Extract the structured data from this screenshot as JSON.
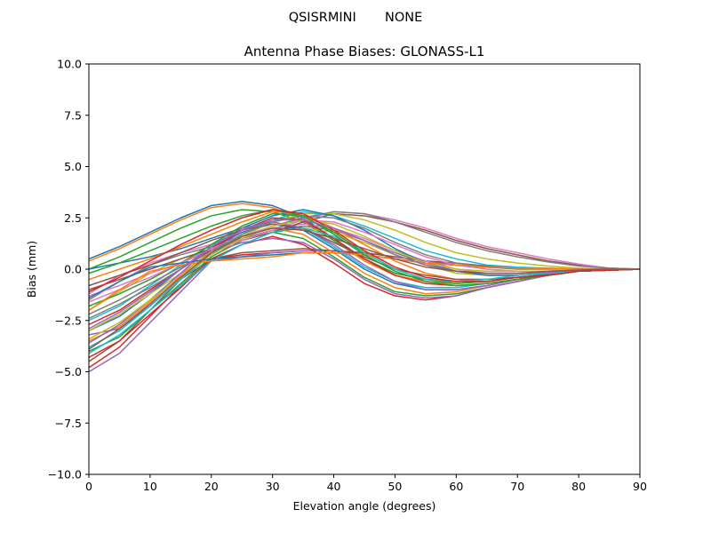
{
  "chart_data": {
    "type": "line",
    "suptitle": "QSISRMINI       NONE",
    "title": "Antenna Phase Biases: GLONASS-L1",
    "xlabel": "Elevation angle (degrees)",
    "ylabel": "Bias (mm)",
    "xlim": [
      0,
      90
    ],
    "ylim": [
      -10,
      10
    ],
    "xticks": [
      0,
      10,
      20,
      30,
      40,
      50,
      60,
      70,
      80,
      90
    ],
    "xtick_labels": [
      "0",
      "10",
      "20",
      "30",
      "40",
      "50",
      "60",
      "70",
      "80",
      "90"
    ],
    "yticks": [
      -10,
      -7.5,
      -5,
      -2.5,
      0,
      2.5,
      5,
      7.5,
      10
    ],
    "ytick_labels": [
      "−10.0",
      "−7.5",
      "−5.0",
      "−2.5",
      "0.0",
      "2.5",
      "5.0",
      "7.5",
      "10.0"
    ],
    "grid": false,
    "legend": "none",
    "colors": [
      "#1f77b4",
      "#ff7f0e",
      "#2ca02c",
      "#d62728",
      "#9467bd",
      "#8c564b",
      "#e377c2",
      "#7f7f7f",
      "#bcbd22",
      "#17becf"
    ],
    "x": [
      0,
      5,
      10,
      15,
      20,
      25,
      30,
      35,
      40,
      45,
      50,
      55,
      60,
      65,
      70,
      75,
      80,
      85,
      90
    ],
    "series": [
      {
        "values": [
          0.5,
          1.1,
          1.8,
          2.5,
          3.1,
          3.3,
          3.1,
          2.5,
          1.5,
          0.5,
          -0.2,
          -0.5,
          -0.6,
          -0.5,
          -0.4,
          -0.3,
          -0.1,
          -0.05,
          0
        ]
      },
      {
        "values": [
          0.4,
          1.0,
          1.7,
          2.4,
          3.0,
          3.2,
          3.0,
          2.4,
          1.4,
          0.4,
          -0.3,
          -0.6,
          -0.7,
          -0.6,
          -0.4,
          -0.3,
          -0.1,
          -0.05,
          0
        ]
      },
      {
        "values": [
          0.0,
          0.6,
          1.3,
          2.0,
          2.6,
          2.9,
          2.8,
          2.3,
          1.4,
          0.5,
          -0.2,
          -0.5,
          -0.6,
          -0.5,
          -0.4,
          -0.3,
          -0.1,
          -0.05,
          0
        ]
      },
      {
        "values": [
          -4.8,
          -3.8,
          -2.3,
          -0.8,
          0.5,
          0.7,
          0.8,
          0.9,
          0.9,
          0.7,
          0.5,
          0.3,
          0.2,
          0.1,
          0.05,
          0.02,
          0.0,
          0.0,
          0
        ]
      },
      {
        "values": [
          -5.0,
          -4.1,
          -2.6,
          -1.1,
          0.4,
          0.6,
          0.8,
          0.9,
          0.9,
          0.8,
          0.6,
          0.4,
          0.2,
          0.1,
          0.05,
          0.02,
          0.0,
          0.0,
          0
        ]
      },
      {
        "values": [
          -4.5,
          -3.5,
          -2.0,
          -0.5,
          0.5,
          0.8,
          0.9,
          1.0,
          0.9,
          0.8,
          0.6,
          0.4,
          0.3,
          0.15,
          0.05,
          0.02,
          0.0,
          0.0,
          0
        ]
      },
      {
        "values": [
          -1.2,
          -0.3,
          0.3,
          0.8,
          1.2,
          1.6,
          2.0,
          2.2,
          2.0,
          1.5,
          0.9,
          0.4,
          0.0,
          -0.2,
          -0.2,
          -0.15,
          -0.1,
          -0.05,
          0
        ]
      },
      {
        "values": [
          -1.5,
          -0.6,
          0.2,
          0.7,
          1.1,
          1.5,
          1.9,
          2.1,
          1.9,
          1.4,
          0.8,
          0.3,
          -0.1,
          -0.3,
          -0.3,
          -0.2,
          -0.1,
          -0.05,
          0
        ]
      },
      {
        "values": [
          -2.0,
          -1.1,
          -0.2,
          0.5,
          1.0,
          1.4,
          1.8,
          2.0,
          1.8,
          1.3,
          0.7,
          0.2,
          -0.2,
          -0.3,
          -0.3,
          -0.2,
          -0.1,
          -0.05,
          0
        ]
      },
      {
        "values": [
          -2.5,
          -1.8,
          -0.8,
          0.2,
          1.2,
          1.9,
          2.3,
          2.0,
          1.1,
          0.1,
          -0.6,
          -0.9,
          -0.9,
          -0.7,
          -0.5,
          -0.3,
          -0.1,
          -0.05,
          0
        ]
      },
      {
        "values": [
          -3.0,
          -2.3,
          -1.2,
          0.0,
          1.0,
          1.8,
          2.2,
          1.9,
          1.0,
          0.0,
          -0.7,
          -1.0,
          -1.0,
          -0.8,
          -0.5,
          -0.3,
          -0.1,
          -0.05,
          0
        ]
      },
      {
        "values": [
          -3.5,
          -2.8,
          -1.6,
          -0.3,
          0.9,
          1.6,
          2.0,
          1.7,
          0.8,
          -0.2,
          -0.9,
          -1.2,
          -1.1,
          -0.8,
          -0.5,
          -0.3,
          -0.1,
          -0.05,
          0
        ]
      },
      {
        "values": [
          -4.0,
          -3.3,
          -2.0,
          -0.7,
          0.6,
          1.4,
          1.8,
          1.5,
          0.6,
          -0.4,
          -1.1,
          -1.3,
          -1.2,
          -0.9,
          -0.6,
          -0.3,
          -0.1,
          -0.05,
          0
        ]
      },
      {
        "values": [
          -4.3,
          -3.5,
          -2.2,
          -0.9,
          0.5,
          1.2,
          1.6,
          1.2,
          0.3,
          -0.7,
          -1.3,
          -1.5,
          -1.3,
          -0.9,
          -0.6,
          -0.3,
          -0.1,
          -0.05,
          0
        ]
      },
      {
        "values": [
          -3.2,
          -2.9,
          -1.8,
          -0.5,
          0.8,
          1.3,
          1.5,
          1.3,
          0.5,
          -0.5,
          -1.2,
          -1.4,
          -1.3,
          -0.9,
          -0.6,
          -0.3,
          -0.1,
          -0.05,
          0
        ]
      },
      {
        "values": [
          -1.0,
          -0.5,
          0.0,
          0.5,
          1.0,
          1.4,
          1.8,
          2.3,
          2.7,
          2.6,
          2.3,
          1.9,
          1.4,
          1.0,
          0.7,
          0.4,
          0.2,
          0.05,
          0
        ]
      },
      {
        "values": [
          -1.3,
          -0.8,
          -0.2,
          0.3,
          0.9,
          1.4,
          1.9,
          2.4,
          2.8,
          2.7,
          2.4,
          2.0,
          1.5,
          1.1,
          0.8,
          0.5,
          0.25,
          0.05,
          0
        ]
      },
      {
        "values": [
          -2.2,
          -1.5,
          -0.7,
          0.1,
          0.9,
          1.5,
          2.1,
          2.5,
          2.8,
          2.7,
          2.3,
          1.8,
          1.3,
          0.9,
          0.6,
          0.35,
          0.15,
          0.05,
          0
        ]
      },
      {
        "values": [
          -3.0,
          -2.2,
          -1.2,
          -0.2,
          0.8,
          1.6,
          2.3,
          2.7,
          2.7,
          2.4,
          1.9,
          1.3,
          0.8,
          0.5,
          0.3,
          0.15,
          0.05,
          0.0,
          0
        ]
      },
      {
        "values": [
          -3.8,
          -3.0,
          -1.8,
          -0.5,
          0.7,
          1.7,
          2.4,
          2.8,
          2.6,
          2.1,
          1.5,
          0.9,
          0.5,
          0.2,
          0.1,
          0.05,
          0.0,
          0.0,
          0
        ]
      },
      {
        "values": [
          0.0,
          0.3,
          0.6,
          1.0,
          1.5,
          2.0,
          2.6,
          2.9,
          2.6,
          1.9,
          1.0,
          0.3,
          -0.1,
          -0.3,
          -0.3,
          -0.2,
          -0.1,
          -0.05,
          0
        ]
      },
      {
        "values": [
          -0.5,
          0.0,
          0.5,
          1.1,
          1.7,
          2.3,
          2.8,
          2.7,
          2.0,
          1.2,
          0.4,
          -0.2,
          -0.5,
          -0.5,
          -0.4,
          -0.3,
          -0.1,
          -0.05,
          0
        ]
      },
      {
        "values": [
          -1.8,
          -1.2,
          -0.5,
          0.3,
          1.2,
          2.1,
          2.7,
          2.6,
          1.8,
          0.8,
          0.0,
          -0.5,
          -0.7,
          -0.6,
          -0.4,
          -0.3,
          -0.1,
          -0.05,
          0
        ]
      },
      {
        "values": [
          -2.7,
          -2.0,
          -1.0,
          0.0,
          1.0,
          1.9,
          2.5,
          2.4,
          1.5,
          0.5,
          -0.3,
          -0.7,
          -0.8,
          -0.7,
          -0.5,
          -0.3,
          -0.1,
          -0.05,
          0
        ]
      },
      {
        "values": [
          -3.6,
          -2.7,
          -1.5,
          -0.2,
          1.1,
          2.0,
          2.3,
          2.0,
          1.2,
          0.2,
          -0.6,
          -1.0,
          -1.0,
          -0.8,
          -0.5,
          -0.3,
          -0.1,
          -0.05,
          0
        ]
      },
      {
        "values": [
          -0.8,
          -0.3,
          0.2,
          0.8,
          1.4,
          1.9,
          2.2,
          2.0,
          1.3,
          0.6,
          0.0,
          -0.3,
          -0.5,
          -0.5,
          -0.4,
          -0.25,
          -0.1,
          -0.05,
          0
        ]
      },
      {
        "values": [
          -1.6,
          -1.0,
          -0.4,
          0.3,
          1.0,
          1.6,
          2.1,
          2.4,
          2.3,
          1.8,
          1.2,
          0.6,
          0.2,
          0.0,
          -0.1,
          -0.1,
          -0.05,
          0.0,
          0
        ]
      },
      {
        "values": [
          -2.4,
          -1.7,
          -0.9,
          0.0,
          0.9,
          1.7,
          2.3,
          2.6,
          2.5,
          2.0,
          1.3,
          0.7,
          0.3,
          0.1,
          0.0,
          0.0,
          0.0,
          0.0,
          0
        ]
      },
      {
        "values": [
          -3.4,
          -2.6,
          -1.5,
          -0.4,
          0.7,
          1.5,
          2.1,
          2.4,
          2.2,
          1.6,
          0.9,
          0.3,
          0.0,
          -0.1,
          -0.1,
          -0.1,
          -0.05,
          0.0,
          0
        ]
      },
      {
        "values": [
          -4.1,
          -3.2,
          -2.0,
          -0.8,
          0.4,
          1.2,
          1.8,
          2.0,
          1.6,
          0.8,
          0.0,
          -0.5,
          -0.6,
          -0.5,
          -0.3,
          -0.2,
          -0.1,
          0.0,
          0
        ]
      },
      {
        "values": [
          -1.4,
          -0.6,
          0.1,
          0.3,
          0.5,
          0.6,
          0.7,
          0.8,
          0.8,
          0.7,
          0.5,
          0.3,
          0.2,
          0.1,
          0.05,
          0.02,
          0.0,
          0.0,
          0
        ]
      },
      {
        "values": [
          -2.0,
          -1.0,
          -0.1,
          0.2,
          0.4,
          0.5,
          0.6,
          0.8,
          0.8,
          0.7,
          0.5,
          0.3,
          0.2,
          0.1,
          0.05,
          0.02,
          0.0,
          0.0,
          0
        ]
      },
      {
        "values": [
          -0.2,
          0.3,
          0.9,
          1.5,
          2.1,
          2.6,
          2.9,
          2.6,
          1.7,
          0.7,
          -0.1,
          -0.6,
          -0.8,
          -0.7,
          -0.5,
          -0.3,
          -0.1,
          -0.05,
          0
        ]
      },
      {
        "values": [
          -1.1,
          -0.4,
          0.4,
          1.2,
          1.9,
          2.5,
          2.9,
          2.7,
          1.9,
          0.9,
          0.1,
          -0.4,
          -0.6,
          -0.6,
          -0.4,
          -0.3,
          -0.1,
          -0.05,
          0
        ]
      },
      {
        "values": [
          -2.9,
          -2.1,
          -1.1,
          0.0,
          1.1,
          1.9,
          2.4,
          2.4,
          2.0,
          1.4,
          0.7,
          0.2,
          -0.1,
          -0.2,
          -0.2,
          -0.15,
          -0.05,
          0.0,
          0
        ]
      },
      {
        "values": [
          -3.9,
          -2.9,
          -1.7,
          -0.4,
          0.8,
          1.6,
          2.0,
          1.9,
          1.5,
          1.0,
          0.5,
          0.1,
          -0.1,
          -0.2,
          -0.2,
          -0.1,
          -0.05,
          0.0,
          0
        ]
      }
    ]
  }
}
